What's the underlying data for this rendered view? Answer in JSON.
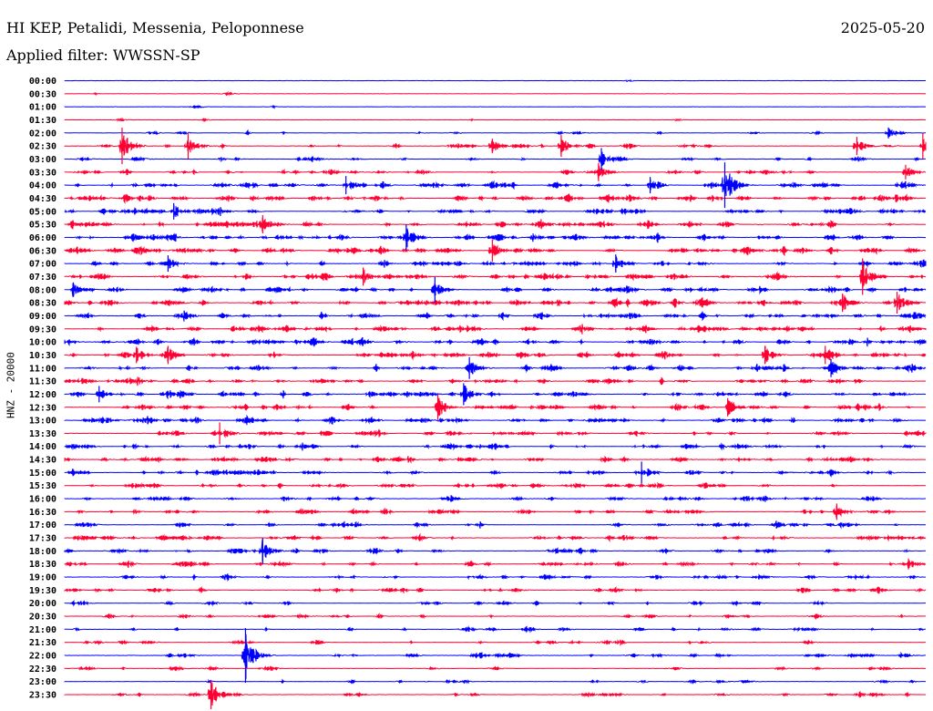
{
  "header": {
    "title": "HI KEP, Petalidi, Messenia, Peloponnese",
    "date": "2025-05-20",
    "filter": "Applied filter: WWSSN-SP"
  },
  "chart_data": {
    "type": "line",
    "title": "HI KEP, Petalidi, Messenia, Peloponnese",
    "ylabel": "HNZ - 20000",
    "xlabel": "",
    "row_minutes": 30,
    "grid": false,
    "colors": [
      "#0000ff",
      "#ff0033"
    ],
    "rows": [
      "00:00",
      "00:30",
      "01:00",
      "01:30",
      "02:00",
      "02:30",
      "03:00",
      "03:30",
      "04:00",
      "04:30",
      "05:00",
      "05:30",
      "06:00",
      "06:30",
      "07:00",
      "07:30",
      "08:00",
      "08:30",
      "09:00",
      "09:30",
      "10:00",
      "10:30",
      "11:00",
      "11:30",
      "12:00",
      "12:30",
      "13:00",
      "13:30",
      "14:00",
      "14:30",
      "15:00",
      "15:30",
      "16:00",
      "16:30",
      "17:00",
      "17:30",
      "18:00",
      "18:30",
      "19:00",
      "19:30",
      "20:00",
      "20:30",
      "21:00",
      "21:30",
      "22:00",
      "22:30",
      "23:00",
      "23:30"
    ],
    "activity": [
      0.02,
      0.03,
      0.03,
      0.05,
      0.2,
      0.35,
      0.3,
      0.5,
      0.7,
      0.8,
      0.8,
      0.75,
      0.9,
      0.85,
      0.8,
      0.8,
      0.7,
      0.8,
      0.8,
      0.85,
      0.8,
      0.75,
      0.7,
      0.75,
      0.7,
      0.7,
      0.75,
      0.7,
      0.65,
      0.6,
      0.6,
      0.55,
      0.5,
      0.6,
      0.55,
      0.6,
      0.5,
      0.55,
      0.45,
      0.4,
      0.3,
      0.3,
      0.3,
      0.3,
      0.35,
      0.25,
      0.25,
      0.3
    ],
    "events": [
      {
        "row": 4,
        "minute": 28.7,
        "amp": 6
      },
      {
        "row": 5,
        "minute": 2.0,
        "amp": 20
      },
      {
        "row": 5,
        "minute": 4.3,
        "amp": 14
      },
      {
        "row": 5,
        "minute": 14.9,
        "amp": 8
      },
      {
        "row": 5,
        "minute": 17.3,
        "amp": 12
      },
      {
        "row": 5,
        "minute": 27.6,
        "amp": 10
      },
      {
        "row": 5,
        "minute": 29.9,
        "amp": 14
      },
      {
        "row": 6,
        "minute": 18.7,
        "amp": 12
      },
      {
        "row": 7,
        "minute": 18.6,
        "amp": 10
      },
      {
        "row": 7,
        "minute": 29.3,
        "amp": 8
      },
      {
        "row": 8,
        "minute": 9.8,
        "amp": 10
      },
      {
        "row": 8,
        "minute": 20.4,
        "amp": 9
      },
      {
        "row": 8,
        "minute": 23.0,
        "amp": 25
      },
      {
        "row": 10,
        "minute": 3.8,
        "amp": 9
      },
      {
        "row": 11,
        "minute": 6.9,
        "amp": 10
      },
      {
        "row": 12,
        "minute": 11.9,
        "amp": 14
      },
      {
        "row": 13,
        "minute": 14.9,
        "amp": 12
      },
      {
        "row": 14,
        "minute": 3.6,
        "amp": 9
      },
      {
        "row": 14,
        "minute": 19.2,
        "amp": 10
      },
      {
        "row": 15,
        "minute": 10.4,
        "amp": 10
      },
      {
        "row": 15,
        "minute": 27.8,
        "amp": 20
      },
      {
        "row": 16,
        "minute": 12.9,
        "amp": 14
      },
      {
        "row": 16,
        "minute": 0.3,
        "amp": 8
      },
      {
        "row": 17,
        "minute": 27.1,
        "amp": 10
      },
      {
        "row": 17,
        "minute": 29.0,
        "amp": 12
      },
      {
        "row": 21,
        "minute": 2.5,
        "amp": 9
      },
      {
        "row": 21,
        "minute": 3.6,
        "amp": 10
      },
      {
        "row": 21,
        "minute": 24.4,
        "amp": 10
      },
      {
        "row": 21,
        "minute": 26.5,
        "amp": 10
      },
      {
        "row": 22,
        "minute": 14.1,
        "amp": 12
      },
      {
        "row": 22,
        "minute": 26.7,
        "amp": 10
      },
      {
        "row": 24,
        "minute": 1.2,
        "amp": 9
      },
      {
        "row": 24,
        "minute": 13.9,
        "amp": 12
      },
      {
        "row": 25,
        "minute": 13.0,
        "amp": 14
      },
      {
        "row": 25,
        "minute": 23.1,
        "amp": 10
      },
      {
        "row": 27,
        "minute": 5.4,
        "amp": 12
      },
      {
        "row": 30,
        "minute": 20.1,
        "amp": 12
      },
      {
        "row": 33,
        "minute": 26.9,
        "amp": 9
      },
      {
        "row": 36,
        "minute": 6.9,
        "amp": 14
      },
      {
        "row": 37,
        "minute": 29.4,
        "amp": 6
      },
      {
        "row": 44,
        "minute": 6.3,
        "amp": 30
      },
      {
        "row": 47,
        "minute": 5.1,
        "amp": 16
      }
    ]
  }
}
